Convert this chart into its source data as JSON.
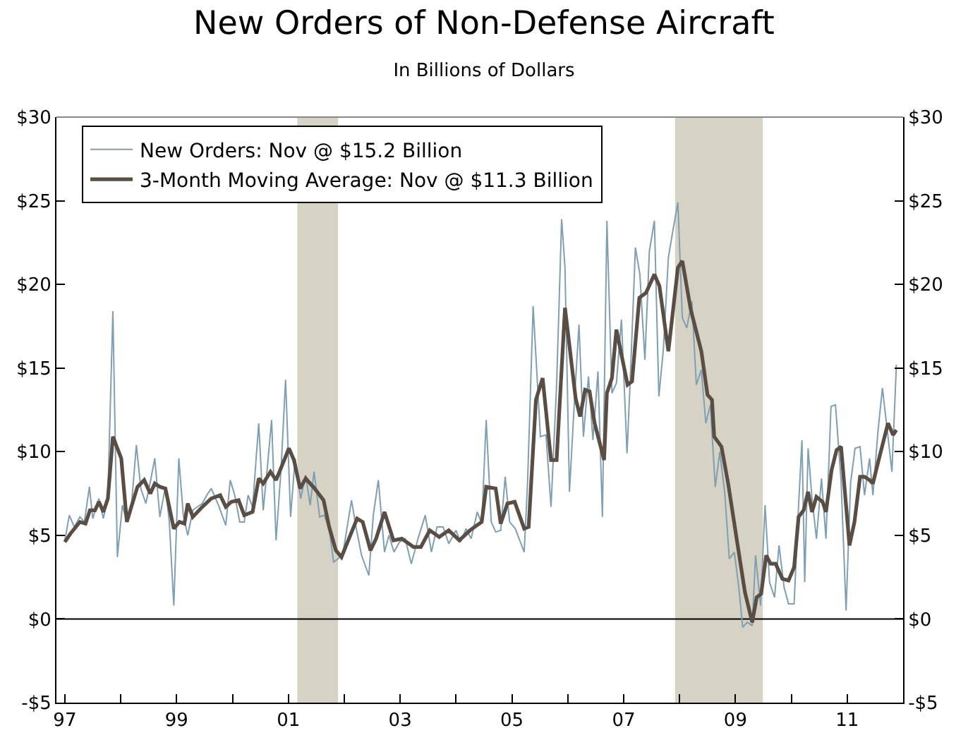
{
  "chart_data": {
    "type": "line",
    "title": "New Orders of Non-Defense Aircraft",
    "subtitle": "In Billions of Dollars",
    "xlim": [
      1996.85,
      2012.0
    ],
    "xticks": [
      {
        "value": 1997,
        "label": "97"
      },
      {
        "value": 1998,
        "label": null
      },
      {
        "value": 1999,
        "label": "99"
      },
      {
        "value": 2000,
        "label": null
      },
      {
        "value": 2001,
        "label": "01"
      },
      {
        "value": 2002,
        "label": null
      },
      {
        "value": 2003,
        "label": "03"
      },
      {
        "value": 2004,
        "label": null
      },
      {
        "value": 2005,
        "label": "05"
      },
      {
        "value": 2006,
        "label": null
      },
      {
        "value": 2007,
        "label": "07"
      },
      {
        "value": 2008,
        "label": null
      },
      {
        "value": 2009,
        "label": "09"
      },
      {
        "value": 2010,
        "label": null
      },
      {
        "value": 2011,
        "label": "11"
      }
    ],
    "ylim": [
      -5,
      30
    ],
    "yticks": [
      {
        "value": -5,
        "label": "-$5"
      },
      {
        "value": 0,
        "label": "$0"
      },
      {
        "value": 5,
        "label": "$5"
      },
      {
        "value": 10,
        "label": "$10"
      },
      {
        "value": 15,
        "label": "$15"
      },
      {
        "value": 20,
        "label": "$20"
      },
      {
        "value": 25,
        "label": "$25"
      },
      {
        "value": 30,
        "label": "$30"
      }
    ],
    "y2lim": [
      -5,
      30
    ],
    "y2ticks": [
      {
        "value": -5,
        "label": "-$5"
      },
      {
        "value": 0,
        "label": "$0"
      },
      {
        "value": 5,
        "label": "$5"
      },
      {
        "value": 10,
        "label": "$10"
      },
      {
        "value": 15,
        "label": "$15"
      },
      {
        "value": 20,
        "label": "$20"
      },
      {
        "value": 25,
        "label": "$25"
      },
      {
        "value": 30,
        "label": "$30"
      }
    ],
    "grid": false,
    "legend": "top left",
    "marker": "none",
    "line_style": "solid",
    "bands": [
      {
        "axis": "x",
        "from": 2001.16,
        "to": 2001.89,
        "label": null,
        "color": "#d6d2c4"
      },
      {
        "axis": "x",
        "from": 2007.92,
        "to": 2009.49,
        "label": null,
        "color": "#d6d2c4"
      }
    ],
    "ref_lines": [
      {
        "axis": "y",
        "value": 0,
        "label": null,
        "color": "#000000"
      }
    ],
    "series": [
      {
        "name": "New Orders: Nov @ $15.2 Billion",
        "color": "#7f9fb5",
        "x": [
          1997.0,
          1997.08,
          1997.17,
          1997.27,
          1997.35,
          1997.44,
          1997.5,
          1997.61,
          1997.69,
          1997.77,
          1997.86,
          1997.94,
          1998.03,
          1998.11,
          1998.19,
          1998.28,
          1998.36,
          1998.45,
          1998.53,
          1998.61,
          1998.7,
          1998.8,
          1998.87,
          1998.95,
          1999.04,
          1999.12,
          1999.2,
          1999.29,
          1999.37,
          1999.46,
          1999.54,
          1999.62,
          1999.75,
          1999.88,
          1999.96,
          2000.04,
          2000.13,
          2000.21,
          2000.28,
          2000.36,
          2000.47,
          2000.55,
          2000.62,
          2000.7,
          2000.78,
          2000.87,
          2000.95,
          2001.04,
          2001.12,
          2001.22,
          2001.31,
          2001.39,
          2001.46,
          2001.56,
          2001.64,
          2001.73,
          2001.81,
          2001.89,
          2001.98,
          2002.13,
          2002.21,
          2002.31,
          2002.44,
          2002.52,
          2002.61,
          2002.72,
          2002.8,
          2002.89,
          2002.99,
          2003.09,
          2003.2,
          2003.32,
          2003.45,
          2003.56,
          2003.66,
          2003.77,
          2003.87,
          2004.0,
          2004.08,
          2004.18,
          2004.27,
          2004.38,
          2004.46,
          2004.54,
          2004.63,
          2004.71,
          2004.8,
          2004.88,
          2004.96,
          2005.06,
          2005.22,
          2005.28,
          2005.38,
          2005.51,
          2005.61,
          2005.7,
          2005.8,
          2005.89,
          2005.95,
          2006.03,
          2006.12,
          2006.2,
          2006.28,
          2006.37,
          2006.45,
          2006.54,
          2006.62,
          2006.7,
          2006.79,
          2006.87,
          2006.96,
          2007.06,
          2007.12,
          2007.21,
          2007.29,
          2007.38,
          2007.46,
          2007.55,
          2007.63,
          2007.71,
          2007.8,
          2007.88,
          2007.97,
          2008.05,
          2008.13,
          2008.22,
          2008.3,
          2008.39,
          2008.47,
          2008.55,
          2008.64,
          2008.72,
          2008.81,
          2008.89,
          2008.98,
          2009.06,
          2009.13,
          2009.21,
          2009.3,
          2009.36,
          2009.45,
          2009.53,
          2009.61,
          2009.7,
          2009.78,
          2009.87,
          2009.95,
          2010.05,
          2010.13,
          2010.19,
          2010.24,
          2010.3,
          2010.37,
          2010.45,
          2010.54,
          2010.62,
          2010.71,
          2010.79,
          2010.89,
          2010.98,
          2011.06,
          2011.14,
          2011.23,
          2011.31,
          2011.4,
          2011.46,
          2011.55,
          2011.63,
          2011.72,
          2011.8,
          2011.88
        ],
        "values": [
          4.7,
          6.2,
          5.5,
          6.1,
          5.8,
          7.9,
          6.0,
          7.2,
          6.0,
          7.4,
          18.4,
          3.7,
          6.8,
          5.8,
          6.7,
          10.4,
          7.8,
          6.9,
          8.2,
          9.6,
          6.1,
          7.9,
          5.8,
          0.8,
          9.6,
          6.2,
          5.0,
          6.5,
          6.7,
          6.9,
          7.4,
          7.8,
          6.8,
          5.6,
          8.3,
          7.4,
          5.8,
          5.8,
          7.4,
          6.7,
          11.7,
          6.5,
          8.9,
          11.9,
          4.7,
          9.0,
          14.3,
          6.1,
          9.6,
          7.2,
          8.6,
          6.8,
          8.8,
          6.1,
          6.2,
          5.4,
          3.4,
          3.6,
          4.0,
          7.1,
          5.5,
          3.8,
          2.6,
          6.2,
          8.3,
          4.0,
          5.0,
          4.0,
          4.6,
          4.8,
          3.3,
          4.8,
          6.2,
          4.0,
          5.5,
          5.5,
          4.5,
          5.3,
          4.6,
          5.4,
          4.8,
          6.4,
          5.7,
          11.9,
          5.8,
          5.2,
          5.3,
          8.5,
          5.8,
          5.4,
          4.0,
          8.1,
          18.7,
          10.9,
          11.0,
          6.7,
          14.0,
          23.9,
          21.0,
          7.6,
          13.1,
          17.6,
          10.9,
          14.5,
          10.7,
          14.8,
          6.1,
          23.8,
          13.5,
          14.1,
          17.9,
          9.9,
          14.5,
          22.2,
          20.6,
          15.5,
          22.0,
          23.8,
          13.3,
          16.1,
          21.6,
          23.2,
          24.9,
          18.0,
          17.4,
          19.0,
          14.0,
          14.9,
          11.7,
          12.8,
          7.9,
          10.0,
          7.5,
          3.6,
          4.0,
          1.9,
          -0.5,
          -0.2,
          -0.4,
          3.8,
          0.8,
          6.8,
          2.2,
          1.3,
          4.4,
          1.9,
          0.9,
          0.9,
          6.8,
          10.7,
          2.2,
          10.2,
          7.2,
          4.8,
          8.4,
          4.8,
          12.7,
          12.8,
          8.3,
          0.5,
          8.1,
          10.2,
          10.3,
          7.4,
          9.6,
          7.4,
          11.2,
          13.8,
          11.2,
          8.8,
          15.2
        ]
      },
      {
        "name": "3-Month Moving Average: Nov @ $11.3 Billion",
        "color": "#5a4e44",
        "x": [
          1997.0,
          1997.1,
          1997.27,
          1997.37,
          1997.45,
          1997.54,
          1997.61,
          1997.69,
          1997.77,
          1997.86,
          1998.01,
          1998.11,
          1998.19,
          1998.3,
          1998.42,
          1998.53,
          1998.61,
          1998.7,
          1998.8,
          1998.95,
          1999.05,
          1999.14,
          1999.2,
          1999.29,
          1999.46,
          1999.62,
          1999.78,
          1999.88,
          1999.98,
          2000.11,
          2000.21,
          2000.36,
          2000.47,
          2000.55,
          2000.68,
          2000.78,
          2000.89,
          2001.01,
          2001.1,
          2001.21,
          2001.31,
          2001.47,
          2001.63,
          2001.73,
          2001.85,
          2001.95,
          2002.23,
          2002.33,
          2002.47,
          2002.57,
          2002.72,
          2002.88,
          2003.03,
          2003.24,
          2003.37,
          2003.53,
          2003.7,
          2003.87,
          2004.06,
          2004.25,
          2004.46,
          2004.54,
          2004.71,
          2004.8,
          2004.92,
          2005.05,
          2005.22,
          2005.3,
          2005.43,
          2005.55,
          2005.7,
          2005.8,
          2005.95,
          2006.14,
          2006.22,
          2006.31,
          2006.39,
          2006.48,
          2006.65,
          2006.7,
          2006.79,
          2006.87,
          2007.07,
          2007.15,
          2007.28,
          2007.4,
          2007.55,
          2007.64,
          2007.8,
          2007.97,
          2008.05,
          2008.2,
          2008.39,
          2008.5,
          2008.58,
          2008.62,
          2008.75,
          2008.87,
          2009.04,
          2009.17,
          2009.3,
          2009.38,
          2009.46,
          2009.55,
          2009.63,
          2009.72,
          2009.84,
          2009.95,
          2010.05,
          2010.13,
          2010.22,
          2010.3,
          2010.37,
          2010.45,
          2010.56,
          2010.62,
          2010.72,
          2010.81,
          2010.89,
          2011.04,
          2011.13,
          2011.23,
          2011.31,
          2011.4,
          2011.46,
          2011.57,
          2011.73,
          2011.82,
          2011.88
        ],
        "values": [
          4.6,
          5.1,
          5.8,
          5.7,
          6.5,
          6.5,
          7.0,
          6.4,
          7.2,
          10.9,
          9.6,
          5.8,
          6.7,
          7.9,
          8.3,
          7.5,
          8.1,
          7.9,
          7.8,
          5.4,
          5.8,
          5.7,
          6.9,
          6.1,
          6.7,
          7.2,
          7.4,
          6.7,
          7.0,
          7.1,
          6.2,
          6.4,
          8.4,
          8.1,
          8.8,
          8.3,
          9.2,
          10.2,
          9.5,
          7.8,
          8.4,
          7.8,
          7.1,
          5.5,
          4.1,
          3.7,
          6.0,
          5.8,
          4.1,
          4.8,
          6.4,
          4.7,
          4.8,
          4.3,
          4.3,
          5.3,
          4.9,
          5.3,
          4.7,
          5.3,
          5.8,
          7.9,
          7.8,
          5.7,
          6.9,
          7.0,
          5.4,
          5.5,
          13.1,
          14.4,
          9.5,
          9.5,
          18.6,
          13.2,
          12.1,
          13.7,
          13.6,
          11.7,
          9.5,
          13.5,
          14.4,
          17.3,
          14.0,
          14.2,
          19.2,
          19.5,
          20.6,
          19.9,
          16.0,
          21.0,
          21.4,
          18.5,
          16.0,
          13.4,
          13.1,
          10.9,
          10.3,
          8.1,
          4.4,
          1.6,
          -0.2,
          1.3,
          1.5,
          3.8,
          3.3,
          3.3,
          2.4,
          2.3,
          3.1,
          6.1,
          6.5,
          7.6,
          6.4,
          7.3,
          7.0,
          6.4,
          8.9,
          10.1,
          10.3,
          4.4,
          5.8,
          8.5,
          8.5,
          8.3,
          8.1,
          9.6,
          11.7,
          11.0,
          11.3
        ]
      }
    ]
  }
}
